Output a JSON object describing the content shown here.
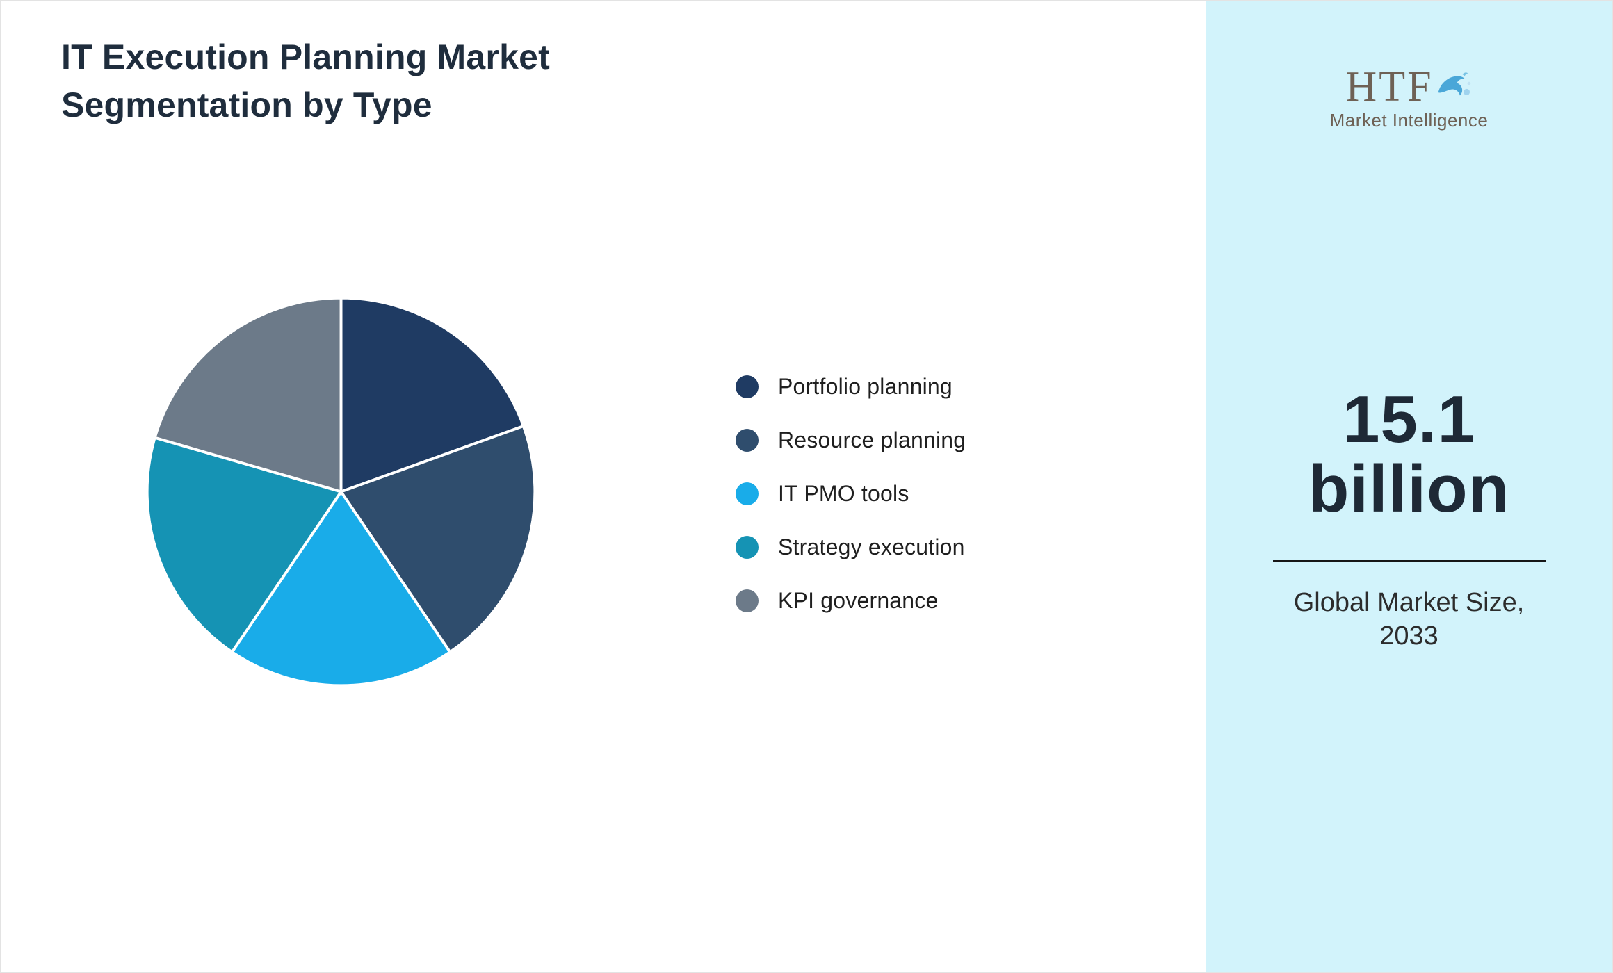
{
  "title": "IT Execution Planning Market\nSegmentation by Type",
  "chart_data": {
    "type": "pie",
    "title": "IT Execution Planning Market Segmentation by Type",
    "legend_position": "right",
    "start_angle_deg": -90,
    "direction": "clockwise",
    "units": "percent share (estimated from slice angles)",
    "segments": [
      {
        "label": "Portfolio planning",
        "value": 19.5,
        "color": "#1f3b63"
      },
      {
        "label": "Resource planning",
        "value": 21.0,
        "color": "#2f4d6d"
      },
      {
        "label": "IT PMO tools",
        "value": 19.0,
        "color": "#19ace9"
      },
      {
        "label": "Strategy execution",
        "value": 20.0,
        "color": "#1593b4"
      },
      {
        "label": "KPI governance",
        "value": 20.5,
        "color": "#6c7a89"
      }
    ],
    "slice_gap_color": "#ffffff"
  },
  "sidebar": {
    "background": "#d2f3fb",
    "logo_text": "HTF",
    "logo_subtext": "Market Intelligence",
    "market_size_line1": "15.1",
    "market_size_line2": "billion",
    "caption_line1": "Global Market Size,",
    "caption_line2": "2033"
  }
}
